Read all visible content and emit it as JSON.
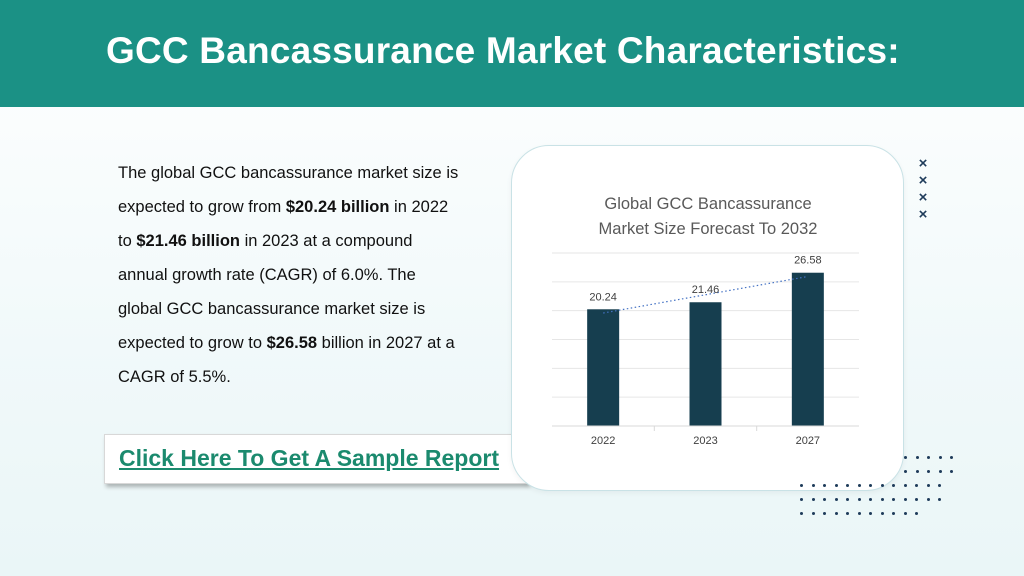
{
  "header": {
    "title": "GCC Bancassurance Market Characteristics:"
  },
  "body": {
    "p1": "The global GCC bancassurance market size is expected to grow from ",
    "v1": "$20.24 billion",
    "p2": " in 2022 to ",
    "v2": "$21.46 billion",
    "p3": " in 2023 at a compound annual growth rate (CAGR) of 6.0%. The global GCC bancassurance market size is expected to grow to ",
    "v3": "$26.58",
    "p4": " billion in 2027 at a CAGR of 5.5%."
  },
  "cta": {
    "label": "Click Here To Get A Sample Report"
  },
  "colors": {
    "header_bg": "#1b9185",
    "bar": "#163e4f",
    "link": "#1b8a6e",
    "deco": "#1e3b5a"
  },
  "chart_data": {
    "type": "bar",
    "title_lines": [
      "Global GCC Bancassurance",
      "Market Size Forecast To 2032"
    ],
    "categories": [
      "2022",
      "2023",
      "2027"
    ],
    "values": [
      20.24,
      21.46,
      26.58
    ],
    "data_labels": [
      "20.24",
      "21.46",
      "26.58"
    ],
    "ylim": [
      0,
      30
    ],
    "grid": true,
    "trendline": "dotted-linear",
    "legend": "none"
  }
}
